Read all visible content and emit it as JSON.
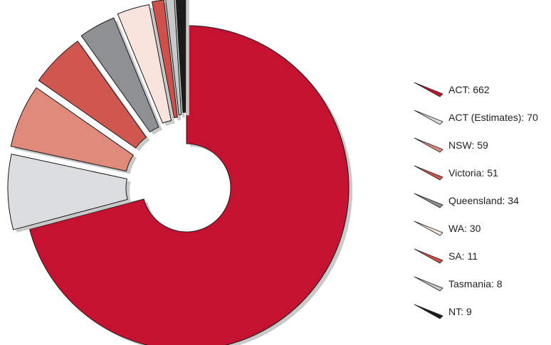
{
  "chart_data": {
    "type": "pie",
    "style": "donut-exploded",
    "title": "",
    "legend_position": "right",
    "slices": [
      {
        "label": "ACT",
        "value": 662,
        "legend": "ACT: 662",
        "color": "#c41230",
        "icon": "wedge-icon"
      },
      {
        "label": "ACT (Estimates)",
        "value": 70,
        "legend": "ACT (Estimates): 70",
        "color": "#dcdddf",
        "icon": "wedge-icon"
      },
      {
        "label": "NSW",
        "value": 59,
        "legend": "NSW: 59",
        "color": "#e08a7c",
        "icon": "wedge-icon"
      },
      {
        "label": "Victoria",
        "value": 51,
        "legend": "Victoria: 51",
        "color": "#d0574f",
        "icon": "wedge-icon"
      },
      {
        "label": "Queensland",
        "value": 34,
        "legend": "Queensland: 34",
        "color": "#8e9093",
        "icon": "wedge-icon"
      },
      {
        "label": "WA",
        "value": 30,
        "legend": "WA: 30",
        "color": "#f9e4dd",
        "icon": "wedge-icon"
      },
      {
        "label": "SA",
        "value": 11,
        "legend": "SA: 11",
        "color": "#cf4f4b",
        "icon": "wedge-icon"
      },
      {
        "label": "Tasmania",
        "value": 8,
        "legend": "Tasmania: 8",
        "color": "#c8c9cb",
        "icon": "wedge-icon"
      },
      {
        "label": "NT",
        "value": 9,
        "legend": "NT: 9",
        "color": "#1b1b1b",
        "icon": "wedge-icon"
      }
    ]
  }
}
